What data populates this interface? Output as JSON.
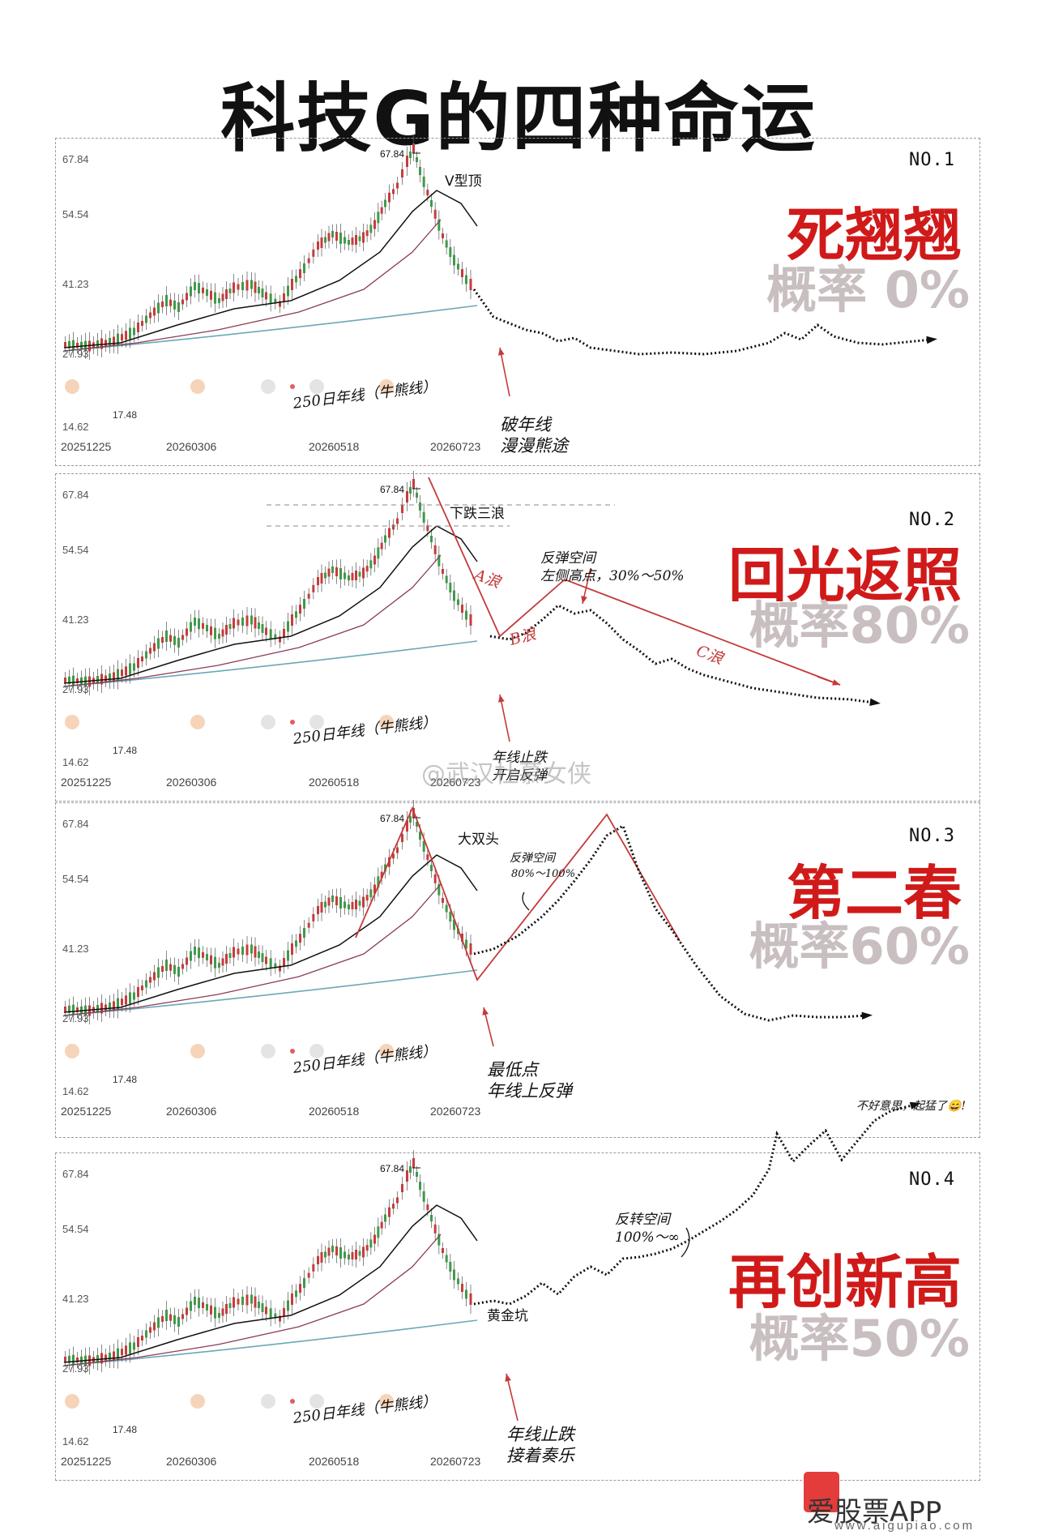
{
  "title": "科技G的四种命运",
  "axis": {
    "yticks": [
      "67.84",
      "54.54",
      "41.23",
      "27.93",
      "14.62"
    ],
    "xdates": [
      "20251225",
      "20260306",
      "20260518",
      "20260723"
    ],
    "high_label": "67.84",
    "low_label": "17.48",
    "ma250_label": "250日年线（牛熊线）"
  },
  "panels": [
    {
      "no": "NO.1",
      "name": "死翘翘",
      "prob": "概率  0%",
      "pattern": "V型顶",
      "notes": [
        "破年线",
        "漫漫熊途"
      ]
    },
    {
      "no": "NO.2",
      "name": "回光返照",
      "prob": "概率80%",
      "pattern": "下跌三浪",
      "notes": [
        "反弹空间",
        "左侧高点，30%～50%",
        "A浪",
        "B浪",
        "C浪",
        "年线止跌",
        "开启反弹"
      ]
    },
    {
      "no": "NO.3",
      "name": "第二春",
      "prob": "概率60%",
      "pattern": "大双头",
      "notes": [
        "反弹空间",
        "80%～100%",
        "最低点",
        "年线上反弹"
      ]
    },
    {
      "no": "NO.4",
      "name": "再创新高",
      "prob": "概率50%",
      "pattern": "黄金坑",
      "notes": [
        "反转空间",
        "100%～∞",
        "年线止跌",
        "接着奏乐",
        "不好意思，起猛了😄!"
      ]
    }
  ],
  "watermark": "@武汉杜慕女侠",
  "brand": {
    "name": "爱股票APP",
    "url": "www.aigupiao.com",
    "logo_text": "爱股票"
  },
  "colors": {
    "accent": "#d01a1a",
    "prob": "#c9bfc0",
    "annotation_red": "#c43a3a"
  },
  "chart_data": [
    {
      "type": "line",
      "title": "NO.1 死翘翘",
      "pattern": "V型顶",
      "x": [
        "20251225",
        "20260306",
        "20260518",
        "20260723"
      ],
      "series": [],
      "ylim": [
        14.62,
        67.84
      ],
      "high": 67.84,
      "low": 17.48
    },
    {
      "type": "line",
      "title": "NO.2 回光返照",
      "pattern": "下跌三浪",
      "x": [
        "20251225",
        "20260306",
        "20260518",
        "20260723"
      ],
      "series": [],
      "ylim": [
        14.62,
        67.84
      ],
      "high": 67.84,
      "low": 17.48
    },
    {
      "type": "line",
      "title": "NO.3 第二春",
      "pattern": "大双头",
      "x": [
        "20251225",
        "20260306",
        "20260518",
        "20260723"
      ],
      "series": [],
      "ylim": [
        14.62,
        67.84
      ],
      "high": 67.84,
      "low": 17.48
    },
    {
      "type": "line",
      "title": "NO.4 再创新高",
      "pattern": "黄金坑",
      "x": [
        "20251225",
        "20260306",
        "20260518",
        "20260723"
      ],
      "series": [],
      "ylim": [
        14.62,
        67.84
      ],
      "high": 67.84,
      "low": 17.48
    }
  ]
}
